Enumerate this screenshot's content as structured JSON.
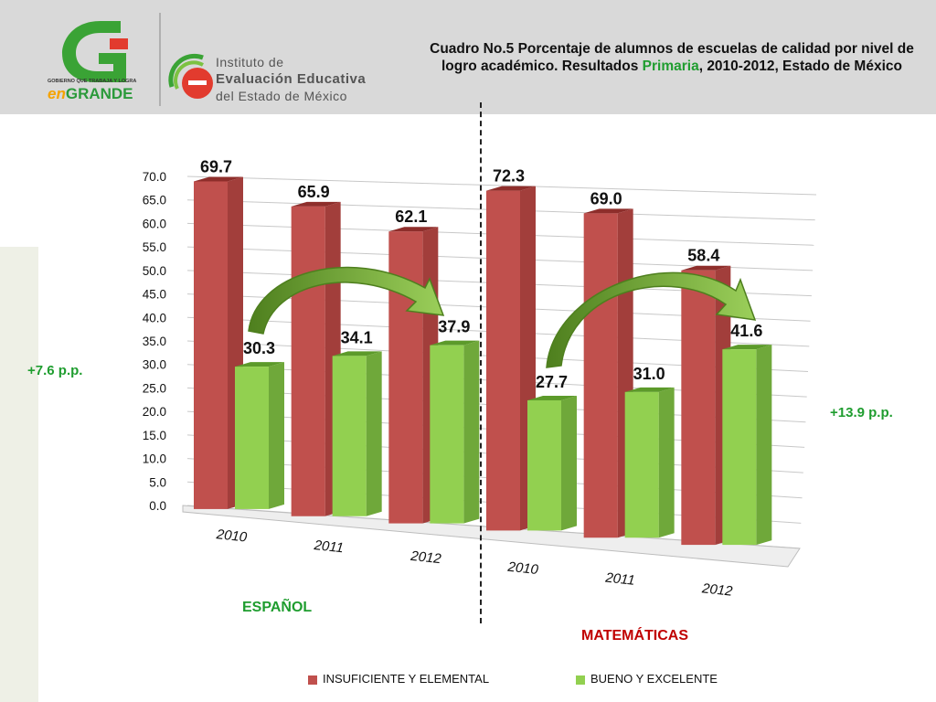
{
  "header": {
    "logo_left_tagline": "GOBIERNO QUE TRABAJA Y LOGRA",
    "logo_left_brand_en": "en",
    "logo_left_brand_grande": "GRANDE",
    "logo_right_line1": "Instituto de",
    "logo_right_line2": "Evaluación Educativa",
    "logo_right_line3": "del Estado de México",
    "title_part1": "Cuadro No.5 Porcentaje de alumnos de escuelas de calidad por nivel de logro académico. Resultados",
    "title_highlight": "Primaria",
    "title_part2": ", 2010-2012, Estado de México"
  },
  "annotations": {
    "left_change": "+7.6 p.p.",
    "right_change": "+13.9 p.p.",
    "group_left": "ESPAÑOL",
    "group_right": "MATEMÁTICAS"
  },
  "colors": {
    "red": "#c0504d",
    "green": "#92d050",
    "green_text": "#1f9d2f",
    "red_text": "#c00000"
  },
  "chart_data": {
    "type": "bar",
    "title": "",
    "xlabel": "",
    "ylabel": "",
    "ylim": [
      0,
      70
    ],
    "yticks": [
      "70.0",
      "65.0",
      "60.0",
      "55.0",
      "50.0",
      "45.0",
      "40.0",
      "35.0",
      "30.0",
      "25.0",
      "20.0",
      "15.0",
      "10.0",
      "5.0",
      "0.0"
    ],
    "groups": [
      "ESPAÑOL",
      "MATEMÁTICAS"
    ],
    "categories": [
      "2010",
      "2011",
      "2012",
      "2010",
      "2011",
      "2012"
    ],
    "series": [
      {
        "name": "INSUFICIENTE Y ELEMENTAL",
        "values": [
          69.7,
          65.9,
          62.1,
          72.3,
          69.0,
          58.4
        ],
        "labels": [
          "69.7",
          "65.9",
          "62.1",
          "72.3",
          "69.0",
          "58.4"
        ]
      },
      {
        "name": "BUENO Y EXCELENTE",
        "values": [
          30.3,
          34.1,
          37.9,
          27.7,
          31.0,
          41.6
        ],
        "labels": [
          "30.3",
          "34.1",
          "37.9",
          "27.7",
          "31.0",
          "41.6"
        ]
      }
    ],
    "legend": "bottom"
  }
}
